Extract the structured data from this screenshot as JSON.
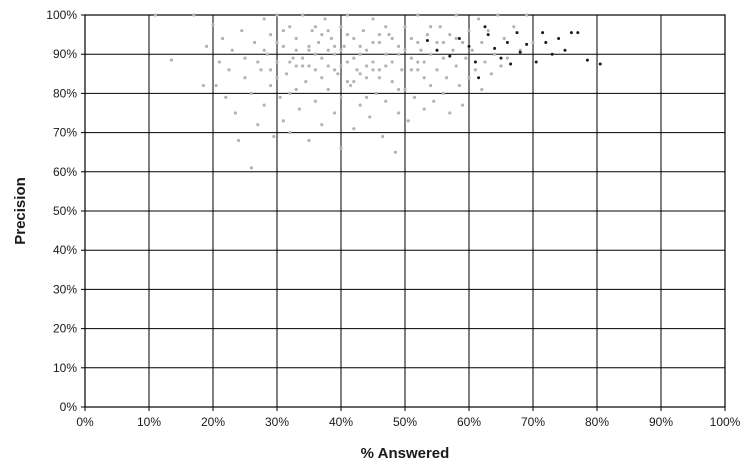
{
  "chart_data": {
    "type": "scatter",
    "title": "",
    "xlabel": "% Answered",
    "ylabel": "Precision",
    "xlim": [
      0,
      100
    ],
    "ylim": [
      0,
      100
    ],
    "x_ticks": [
      "0%",
      "10%",
      "20%",
      "30%",
      "40%",
      "50%",
      "60%",
      "70%",
      "80%",
      "90%",
      "100%"
    ],
    "y_ticks": [
      "0%",
      "10%",
      "20%",
      "30%",
      "40%",
      "50%",
      "60%",
      "70%",
      "80%",
      "90%",
      "100%"
    ],
    "grid": true,
    "legend": "none",
    "series": [
      {
        "color": "#b3b3b3",
        "points": [
          [
            11,
            100
          ],
          [
            13.5,
            88.5
          ],
          [
            17,
            100
          ],
          [
            18.5,
            82
          ],
          [
            19,
            92
          ],
          [
            20,
            97.5
          ],
          [
            20.5,
            82
          ],
          [
            21,
            88
          ],
          [
            21.5,
            94
          ],
          [
            22,
            79
          ],
          [
            22.5,
            86
          ],
          [
            23,
            91
          ],
          [
            23.5,
            75
          ],
          [
            24,
            68
          ],
          [
            24.5,
            96
          ],
          [
            25,
            84
          ],
          [
            25,
            89
          ],
          [
            26,
            61
          ],
          [
            26,
            80
          ],
          [
            26.5,
            93
          ],
          [
            27,
            72
          ],
          [
            27.5,
            86
          ],
          [
            28,
            99
          ],
          [
            28,
            77
          ],
          [
            28.5,
            90
          ],
          [
            29,
            82
          ],
          [
            29,
            95
          ],
          [
            29.5,
            69
          ],
          [
            30,
            88
          ],
          [
            30,
            100
          ],
          [
            30.5,
            79
          ],
          [
            31,
            92
          ],
          [
            31,
            73
          ],
          [
            31.5,
            85
          ],
          [
            32,
            97
          ],
          [
            32,
            70
          ],
          [
            32.5,
            89
          ],
          [
            33,
            81
          ],
          [
            33,
            94
          ],
          [
            33.5,
            76
          ],
          [
            34,
            87
          ],
          [
            34,
            100
          ],
          [
            34.5,
            83
          ],
          [
            35,
            91
          ],
          [
            35,
            68
          ],
          [
            35.5,
            96
          ],
          [
            36,
            78
          ],
          [
            36,
            86
          ],
          [
            36.5,
            93
          ],
          [
            37,
            72
          ],
          [
            37,
            89
          ],
          [
            37.5,
            99
          ],
          [
            38,
            81
          ],
          [
            38,
            87
          ],
          [
            38.5,
            94
          ],
          [
            39,
            75
          ],
          [
            39,
            90
          ],
          [
            39.5,
            85
          ],
          [
            40,
            97
          ],
          [
            40,
            79
          ],
          [
            40,
            66
          ],
          [
            40.5,
            92
          ],
          [
            41,
            88
          ],
          [
            41,
            100
          ],
          [
            41.5,
            82
          ],
          [
            42,
            94
          ],
          [
            42,
            71
          ],
          [
            42.5,
            86
          ],
          [
            43,
            90
          ],
          [
            43,
            77
          ],
          [
            43.5,
            96
          ],
          [
            44,
            84
          ],
          [
            44,
            91
          ],
          [
            44.5,
            74
          ],
          [
            45,
            88
          ],
          [
            45,
            99
          ],
          [
            45.5,
            80
          ],
          [
            46,
            93
          ],
          [
            46,
            86
          ],
          [
            46.5,
            69
          ],
          [
            47,
            90
          ],
          [
            47,
            78
          ],
          [
            47.5,
            95
          ],
          [
            48,
            83
          ],
          [
            48,
            88
          ],
          [
            48.5,
            65
          ],
          [
            49,
            92
          ],
          [
            49,
            75
          ],
          [
            49.5,
            86
          ],
          [
            50,
            97
          ],
          [
            50,
            81
          ],
          [
            50.5,
            73
          ],
          [
            51,
            89
          ],
          [
            51,
            94
          ],
          [
            51.5,
            79
          ],
          [
            52,
            86
          ],
          [
            52,
            100
          ],
          [
            52.5,
            91
          ],
          [
            53,
            76
          ],
          [
            53,
            88
          ],
          [
            53.5,
            95
          ],
          [
            54,
            82
          ],
          [
            54,
            90
          ],
          [
            54.5,
            78
          ],
          [
            55,
            93
          ],
          [
            55,
            86
          ],
          [
            55.5,
            97
          ],
          [
            56,
            80
          ],
          [
            56,
            89
          ],
          [
            56.5,
            84
          ],
          [
            57,
            95
          ],
          [
            57,
            75
          ],
          [
            57.5,
            91
          ],
          [
            58,
            87
          ],
          [
            58,
            100
          ],
          [
            58.5,
            82
          ],
          [
            59,
            93
          ],
          [
            59,
            77
          ],
          [
            59.5,
            89
          ],
          [
            60,
            96
          ],
          [
            60,
            84
          ],
          [
            60.5,
            91
          ],
          [
            61,
            86
          ],
          [
            61.5,
            99
          ],
          [
            62,
            81
          ],
          [
            62,
            93
          ],
          [
            62.5,
            88
          ],
          [
            63,
            96
          ],
          [
            63.5,
            85
          ],
          [
            64,
            90
          ],
          [
            64.5,
            100
          ],
          [
            65,
            87
          ],
          [
            65.5,
            94
          ],
          [
            66,
            89
          ],
          [
            67,
            97
          ],
          [
            68,
            91
          ],
          [
            69,
            100
          ],
          [
            70,
            93
          ],
          [
            30,
            84
          ],
          [
            32,
            88
          ],
          [
            35,
            92
          ],
          [
            38,
            96
          ],
          [
            41,
            83
          ],
          [
            44,
            87
          ],
          [
            47,
            97
          ],
          [
            36,
            90
          ],
          [
            39,
            86
          ],
          [
            42,
            89
          ],
          [
            45,
            93
          ],
          [
            33,
            91
          ],
          [
            37,
            95
          ],
          [
            40,
            87
          ],
          [
            43,
            92
          ],
          [
            46,
            84
          ],
          [
            49,
            90
          ],
          [
            52,
            88
          ],
          [
            55,
            91
          ],
          [
            58,
            94
          ],
          [
            28,
            91
          ],
          [
            31,
            96
          ],
          [
            34,
            89
          ],
          [
            37,
            84
          ],
          [
            40,
            91
          ],
          [
            43,
            85
          ],
          [
            46,
            95
          ],
          [
            49,
            81
          ],
          [
            52,
            93
          ],
          [
            27,
            88
          ],
          [
            30,
            93
          ],
          [
            33,
            87
          ],
          [
            36,
            97
          ],
          [
            39,
            92
          ],
          [
            42,
            83
          ],
          [
            45,
            86
          ],
          [
            48,
            94
          ],
          [
            51,
            86
          ],
          [
            54,
            97
          ],
          [
            29,
            86
          ],
          [
            32,
            80
          ],
          [
            35,
            87
          ],
          [
            38,
            91
          ],
          [
            41,
            95
          ],
          [
            44,
            79
          ],
          [
            47,
            87
          ],
          [
            50,
            91
          ],
          [
            53,
            84
          ],
          [
            56,
            93
          ]
        ]
      },
      {
        "color": "#1a1a1a",
        "points": [
          [
            53.5,
            93.5
          ],
          [
            55,
            91
          ],
          [
            57,
            89.5
          ],
          [
            58.5,
            94
          ],
          [
            60,
            92
          ],
          [
            61,
            88
          ],
          [
            61.5,
            84
          ],
          [
            62.5,
            97
          ],
          [
            63,
            95
          ],
          [
            64,
            91.5
          ],
          [
            65,
            89
          ],
          [
            66,
            93
          ],
          [
            66.5,
            87.5
          ],
          [
            67.5,
            95.5
          ],
          [
            68,
            90.5
          ],
          [
            69,
            92.5
          ],
          [
            70.5,
            88
          ],
          [
            71.5,
            95.5
          ],
          [
            72,
            93
          ],
          [
            73,
            90
          ],
          [
            74,
            94
          ],
          [
            75,
            91
          ],
          [
            76,
            95.5
          ],
          [
            77,
            95.5
          ],
          [
            78.5,
            88.5
          ],
          [
            80.5,
            87.5
          ]
        ]
      }
    ]
  }
}
